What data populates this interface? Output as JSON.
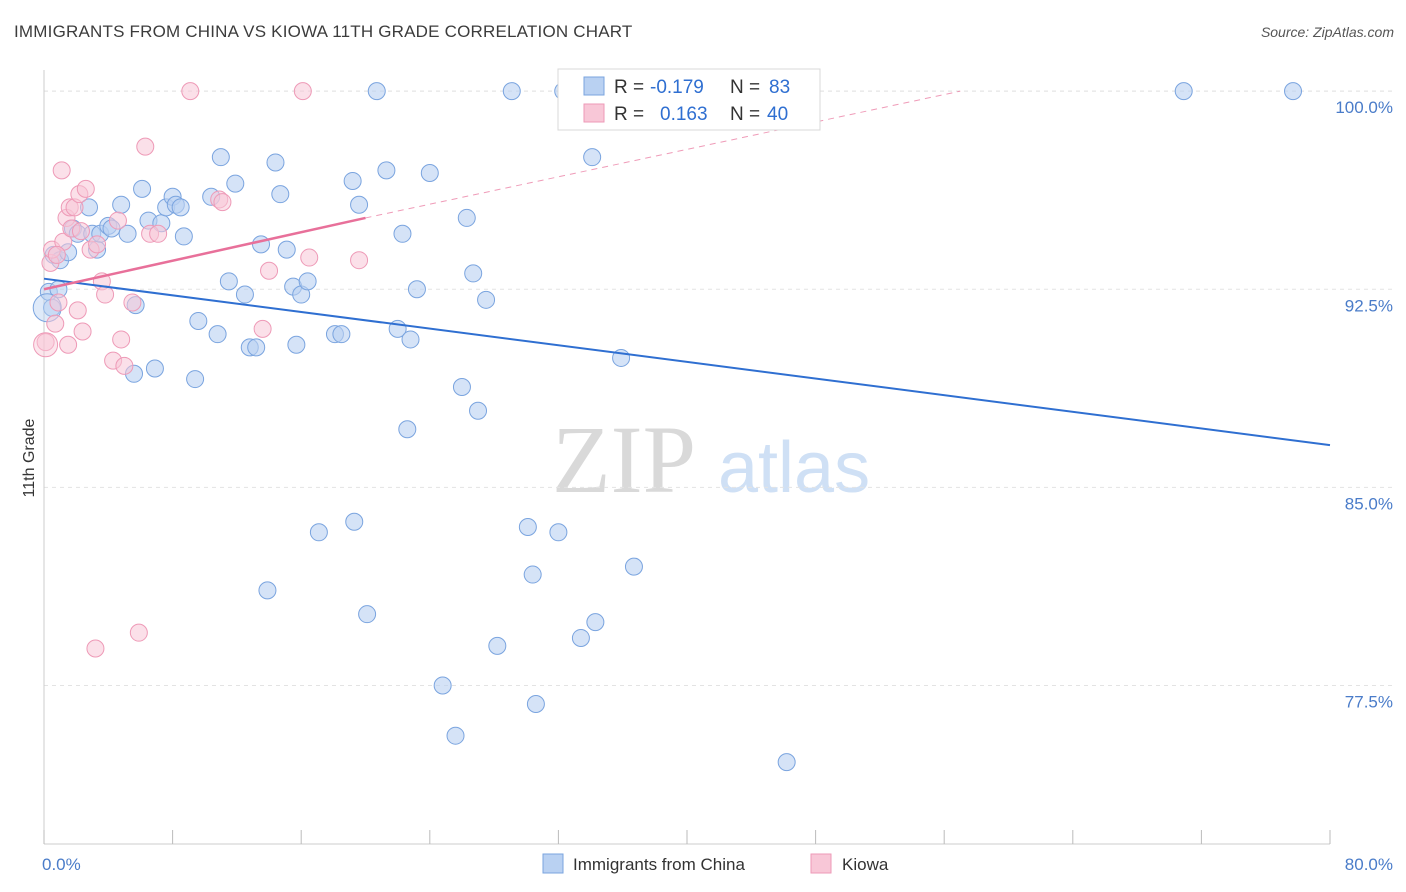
{
  "title": "IMMIGRANTS FROM CHINA VS KIOWA 11TH GRADE CORRELATION CHART",
  "source": "Source: ZipAtlas.com",
  "watermark": {
    "zip": "ZIP",
    "atlas": "atlas"
  },
  "colors": {
    "blue": "#2f6fd1",
    "blue_fill": "#b9d1f2",
    "blue_stroke": "#7aa4df",
    "pink": "#e8709a",
    "pink_fill": "#f8c7d7",
    "pink_stroke": "#ee9ab7",
    "grid": "#e3e3e3",
    "axis_text": "#4a7cc9"
  },
  "chart_data": {
    "type": "scatter",
    "xlabel": "",
    "ylabel": "11th Grade",
    "xlim": [
      0,
      80
    ],
    "ylim": [
      71.5,
      100.8
    ],
    "x_tick_labels": [
      "0.0%",
      "80.0%"
    ],
    "y_ticks": [
      77.5,
      85.0,
      92.5,
      100.0
    ],
    "y_tick_labels": [
      "77.5%",
      "85.0%",
      "92.5%",
      "100.0%"
    ],
    "grid": "horizontal dashed",
    "legend": {
      "placement": "top-center",
      "entries": [
        {
          "r_label": "R =",
          "r_value": "-0.179",
          "n_label": "N =",
          "n_value": "83"
        },
        {
          "r_label": "R =",
          "r_value": "0.163",
          "n_label": "N =",
          "n_value": "40"
        }
      ]
    },
    "series": [
      {
        "name": "Immigrants from China",
        "color": "#2f6fd1",
        "trend": {
          "x0": 0,
          "y0": 92.9,
          "x1": 80,
          "y1": 86.6
        },
        "points": [
          [
            0.3,
            92.4
          ],
          [
            0.5,
            91.8
          ],
          [
            0.6,
            93.8
          ],
          [
            0.9,
            92.5
          ],
          [
            1.0,
            93.6
          ],
          [
            1.5,
            93.9
          ],
          [
            1.8,
            94.8
          ],
          [
            2.1,
            94.6
          ],
          [
            2.8,
            95.6
          ],
          [
            3.0,
            94.6
          ],
          [
            3.3,
            94.0
          ],
          [
            3.5,
            94.6
          ],
          [
            4.0,
            94.9
          ],
          [
            4.2,
            94.8
          ],
          [
            4.8,
            95.7
          ],
          [
            5.2,
            94.6
          ],
          [
            5.6,
            89.3
          ],
          [
            5.7,
            91.9
          ],
          [
            6.1,
            96.3
          ],
          [
            6.5,
            95.1
          ],
          [
            6.9,
            89.5
          ],
          [
            7.3,
            95.0
          ],
          [
            7.6,
            95.6
          ],
          [
            8.0,
            96.0
          ],
          [
            8.2,
            95.7
          ],
          [
            8.5,
            95.6
          ],
          [
            8.7,
            94.5
          ],
          [
            9.4,
            89.1
          ],
          [
            9.6,
            91.3
          ],
          [
            10.4,
            96.0
          ],
          [
            10.8,
            90.8
          ],
          [
            11.0,
            97.5
          ],
          [
            11.5,
            92.8
          ],
          [
            11.9,
            96.5
          ],
          [
            12.5,
            92.3
          ],
          [
            12.8,
            90.3
          ],
          [
            13.2,
            90.3
          ],
          [
            13.5,
            94.2
          ],
          [
            13.9,
            81.1
          ],
          [
            14.4,
            97.3
          ],
          [
            14.7,
            96.1
          ],
          [
            15.1,
            94.0
          ],
          [
            15.5,
            92.6
          ],
          [
            15.7,
            90.4
          ],
          [
            16.0,
            92.3
          ],
          [
            16.4,
            92.8
          ],
          [
            17.1,
            83.3
          ],
          [
            18.1,
            90.8
          ],
          [
            18.5,
            90.8
          ],
          [
            19.2,
            96.6
          ],
          [
            19.3,
            83.7
          ],
          [
            19.6,
            95.7
          ],
          [
            20.1,
            80.2
          ],
          [
            20.7,
            100.0
          ],
          [
            21.3,
            97.0
          ],
          [
            22.0,
            91.0
          ],
          [
            22.3,
            94.6
          ],
          [
            22.6,
            87.2
          ],
          [
            22.8,
            90.6
          ],
          [
            23.2,
            92.5
          ],
          [
            24.0,
            96.9
          ],
          [
            24.8,
            77.5
          ],
          [
            25.6,
            75.6
          ],
          [
            26.0,
            88.8
          ],
          [
            26.3,
            95.2
          ],
          [
            26.7,
            93.1
          ],
          [
            27.0,
            87.9
          ],
          [
            27.5,
            92.1
          ],
          [
            28.2,
            79.0
          ],
          [
            29.1,
            100.0
          ],
          [
            30.1,
            83.5
          ],
          [
            30.4,
            81.7
          ],
          [
            30.6,
            76.8
          ],
          [
            32.0,
            83.3
          ],
          [
            32.3,
            100.0
          ],
          [
            33.4,
            79.3
          ],
          [
            34.1,
            97.5
          ],
          [
            34.3,
            79.9
          ],
          [
            35.9,
            89.9
          ],
          [
            36.7,
            82.0
          ],
          [
            46.2,
            74.6
          ],
          [
            70.9,
            100.0
          ],
          [
            77.7,
            100.0
          ]
        ]
      },
      {
        "name": "Kiowa",
        "color": "#e8709a",
        "trend": {
          "x0": 0,
          "y0": 92.5,
          "x1": 20,
          "y1": 95.2
        },
        "trend_dashed": {
          "x0": 20,
          "y0": 95.2,
          "x1": 57,
          "y1": 100.0
        },
        "points": [
          [
            0.1,
            90.5
          ],
          [
            0.4,
            93.5
          ],
          [
            0.5,
            94.0
          ],
          [
            0.7,
            91.2
          ],
          [
            0.9,
            92.0
          ],
          [
            1.1,
            97.0
          ],
          [
            1.2,
            94.3
          ],
          [
            1.4,
            95.2
          ],
          [
            1.5,
            90.4
          ],
          [
            1.6,
            95.6
          ],
          [
            1.7,
            94.8
          ],
          [
            1.9,
            95.6
          ],
          [
            2.1,
            91.7
          ],
          [
            2.2,
            96.1
          ],
          [
            2.3,
            94.7
          ],
          [
            2.4,
            90.9
          ],
          [
            2.6,
            96.3
          ],
          [
            2.9,
            94.0
          ],
          [
            3.3,
            94.2
          ],
          [
            3.6,
            92.8
          ],
          [
            3.8,
            92.3
          ],
          [
            4.3,
            89.8
          ],
          [
            4.6,
            95.1
          ],
          [
            4.8,
            90.6
          ],
          [
            5.0,
            89.6
          ],
          [
            5.5,
            92.0
          ],
          [
            5.9,
            79.5
          ],
          [
            6.3,
            97.9
          ],
          [
            6.6,
            94.6
          ],
          [
            7.1,
            94.6
          ],
          [
            9.1,
            100.0
          ],
          [
            10.9,
            95.9
          ],
          [
            11.1,
            95.8
          ],
          [
            13.6,
            91.0
          ],
          [
            14.0,
            93.2
          ],
          [
            16.1,
            100.0
          ],
          [
            16.5,
            93.7
          ],
          [
            19.6,
            93.6
          ],
          [
            3.2,
            78.9
          ],
          [
            0.8,
            93.8
          ]
        ]
      }
    ]
  }
}
